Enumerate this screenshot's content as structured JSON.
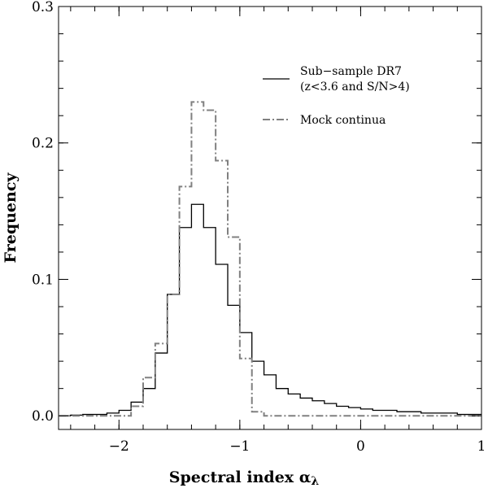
{
  "chart_data": {
    "type": "line",
    "title": "",
    "xlabel": "Spectral index α",
    "xlabel_subscript": "λ",
    "ylabel": "Frequency",
    "xlim": [
      -2.5,
      1.0
    ],
    "ylim": [
      -0.01,
      0.3
    ],
    "x_ticks": [
      -2,
      -1,
      0,
      1
    ],
    "x_tick_labels": [
      "−2",
      "−1",
      "0",
      "1"
    ],
    "y_ticks": [
      0.0,
      0.1,
      0.2,
      0.3
    ],
    "y_tick_labels": [
      "0.0",
      "0.1",
      "0.2",
      "0.3"
    ],
    "grid": false,
    "legend_position": "top-right",
    "bin_edges": [
      -2.5,
      -2.4,
      -2.3,
      -2.2,
      -2.1,
      -2.0,
      -1.9,
      -1.8,
      -1.7,
      -1.6,
      -1.5,
      -1.4,
      -1.3,
      -1.2,
      -1.1,
      -1.0,
      -0.9,
      -0.8,
      -0.7,
      -0.6,
      -0.5,
      -0.4,
      -0.3,
      -0.2,
      -0.1,
      0.0,
      0.1,
      0.2,
      0.3,
      0.4,
      0.5,
      0.6,
      0.7,
      0.8,
      0.9,
      1.0
    ],
    "series": [
      {
        "name": "Sub−sample DR7",
        "name_line2": "(z<3.6 and S/N>4)",
        "style": "solid",
        "color": "#000000",
        "values": [
          0.0,
          0.0005,
          0.001,
          0.001,
          0.002,
          0.004,
          0.01,
          0.02,
          0.046,
          0.089,
          0.138,
          0.155,
          0.138,
          0.111,
          0.081,
          0.061,
          0.04,
          0.03,
          0.02,
          0.016,
          0.013,
          0.011,
          0.009,
          0.007,
          0.006,
          0.005,
          0.004,
          0.004,
          0.003,
          0.003,
          0.002,
          0.002,
          0.002,
          0.001,
          0.001
        ]
      },
      {
        "name": "Mock continua",
        "style": "dash-dot",
        "color": "#808080",
        "values": [
          0.0,
          0.0,
          0.0,
          0.0,
          0.0,
          0.0,
          0.007,
          0.028,
          0.053,
          0.089,
          0.168,
          0.23,
          0.224,
          0.187,
          0.131,
          0.042,
          0.003,
          0.0,
          0.0,
          0.0,
          0.0,
          0.0,
          0.0,
          0.0,
          0.0,
          0.0,
          0.0,
          0.0,
          0.0,
          0.0,
          0.0,
          0.0,
          0.0,
          0.0,
          0.0
        ]
      }
    ]
  }
}
